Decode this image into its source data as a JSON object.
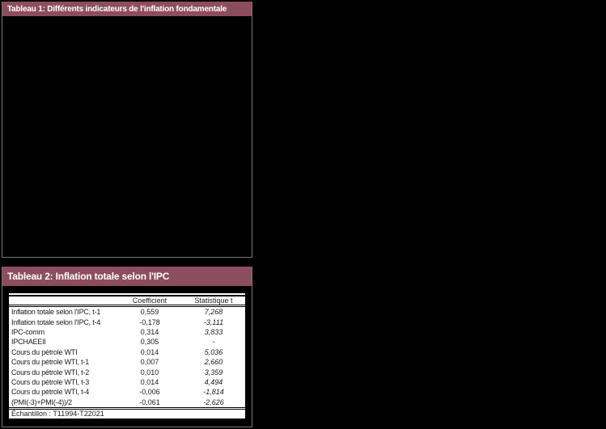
{
  "colors": {
    "header_bg": "#8C4D60",
    "header_text": "#FFFFFF",
    "panel_border": "#787878",
    "page_bg": "#000000",
    "table_bg": "#FFFFFF",
    "table_text": "#1A1A1A"
  },
  "tableau1": {
    "title": "Tableau 1: Différents indicateurs de l'inflation fondamentale"
  },
  "tableau2": {
    "title": "Tableau 2: Inflation totale selon l'IPC",
    "columns": [
      "",
      "Coefficient",
      "Statistique t"
    ],
    "rows": [
      {
        "label": "Inflation totale selon l'IPC, t-1",
        "coefficient": "0,559",
        "t_stat": "7,268"
      },
      {
        "label": "Inflation totale selon l'IPC, t-4",
        "coefficient": "-0,178",
        "t_stat": "-3,111"
      },
      {
        "label": "IPC-comm",
        "coefficient": "0,314",
        "t_stat": "3,833"
      },
      {
        "label": "IPCHAEEII",
        "coefficient": "0,305",
        "t_stat": "-"
      },
      {
        "label": "Cours du pétrole WTI",
        "coefficient": "0,014",
        "t_stat": "5,036"
      },
      {
        "label": "Cours du pétrole WTI, t-1",
        "coefficient": "0,007",
        "t_stat": "2,660"
      },
      {
        "label": "Cours du pétrole WTI, t-2",
        "coefficient": "0,010",
        "t_stat": "3,359"
      },
      {
        "label": "Cours du pétrole WTI, t-3",
        "coefficient": "0,014",
        "t_stat": "4,494"
      },
      {
        "label": "Cours du pétrole WTI, t-4",
        "coefficient": "-0,006",
        "t_stat": "-1,814"
      },
      {
        "label": "(PMI(-3)+PMI(-4))/2",
        "coefficient": "-0,061",
        "t_stat": "-2,626"
      }
    ],
    "footer": "Échantillon : T11994-T22021"
  }
}
